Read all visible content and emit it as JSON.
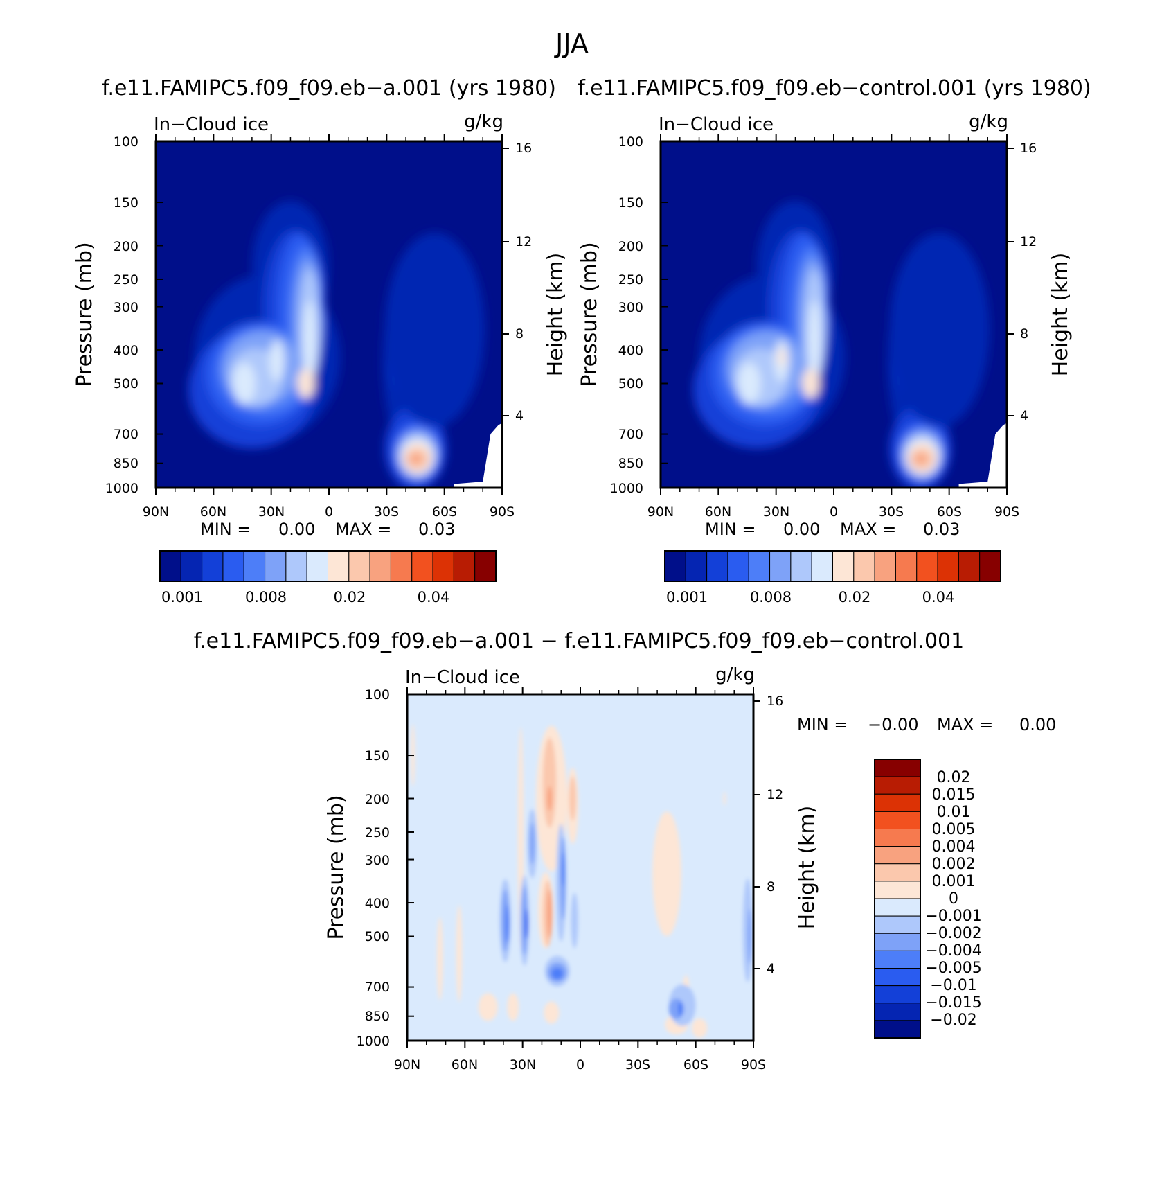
{
  "figure": {
    "title": "JJA",
    "unit_label": "g/kg"
  },
  "colors": {
    "abs_palette": [
      "#000f8a",
      "#0525b2",
      "#1340d8",
      "#2a5cf0",
      "#4d7ef8",
      "#7ea2f8",
      "#aec8fb",
      "#daeafd",
      "#fde6d6",
      "#fbc8ad",
      "#f8a27f",
      "#f67a4f",
      "#f2511f",
      "#dc3205",
      "#b81c03",
      "#870000"
    ],
    "diff_palette": [
      "#000f8a",
      "#0525b2",
      "#1340d8",
      "#2a5cf0",
      "#4d7ef8",
      "#7ea2f8",
      "#aec8fb",
      "#daeafd",
      "#fde6d6",
      "#fbc8ad",
      "#f8a27f",
      "#f67a4f",
      "#f2511f",
      "#dc3205",
      "#b81c03",
      "#870000"
    ]
  },
  "chart_data": [
    {
      "type": "heatmap",
      "id": "panel-a",
      "title": "f.e11.FAMIPC5.f09_f09.eb−a.001 (yrs 1980)",
      "variable_label": "In−Cloud ice",
      "unit_label": "g/kg",
      "xlabel": "",
      "ylabel": "Pressure (mb)",
      "ylabel_right": "Height (km)",
      "x_ticks": [
        "90N",
        "60N",
        "30N",
        "0",
        "30S",
        "60S",
        "90S"
      ],
      "y_ticks": [
        "100",
        "150",
        "200",
        "250",
        "300",
        "400",
        "500",
        "700",
        "850",
        "1000"
      ],
      "y_right_ticks": [
        "16",
        "12",
        "8",
        "4"
      ],
      "stats": {
        "min_label": "MIN =",
        "min_value": "0.00",
        "max_label": "MAX =",
        "max_value": "0.03"
      },
      "colorbar_labels": [
        "0.001",
        "0.008",
        "0.02",
        "0.04"
      ],
      "features": [
        {
          "lat": -47,
          "p": 830,
          "value": 0.028
        },
        {
          "lat": 12,
          "p": 500,
          "value": 0.022
        },
        {
          "lat": 48,
          "p": 520,
          "value": 0.014
        },
        {
          "lat": 32,
          "p": 450,
          "value": 0.012
        },
        {
          "lat": 8,
          "p": 190,
          "value": 0.012
        },
        {
          "lat": -42,
          "p": 380,
          "value": 0.006
        }
      ]
    },
    {
      "type": "heatmap",
      "id": "panel-b",
      "title": "f.e11.FAMIPC5.f09_f09.eb−control.001 (yrs 1980)",
      "variable_label": "In−Cloud ice",
      "unit_label": "g/kg",
      "xlabel": "",
      "ylabel": "Pressure (mb)",
      "ylabel_right": "Height (km)",
      "x_ticks": [
        "90N",
        "60N",
        "30N",
        "0",
        "30S",
        "60S",
        "90S"
      ],
      "y_ticks": [
        "100",
        "150",
        "200",
        "250",
        "300",
        "400",
        "500",
        "700",
        "850",
        "1000"
      ],
      "y_right_ticks": [
        "16",
        "12",
        "8",
        "4"
      ],
      "stats": {
        "min_label": "MIN =",
        "min_value": "0.00",
        "max_label": "MAX =",
        "max_value": "0.03"
      },
      "colorbar_labels": [
        "0.001",
        "0.008",
        "0.02",
        "0.04"
      ],
      "features": [
        {
          "lat": -46,
          "p": 820,
          "value": 0.028
        },
        {
          "lat": 10,
          "p": 500,
          "value": 0.02
        },
        {
          "lat": 30,
          "p": 420,
          "value": 0.016
        },
        {
          "lat": 48,
          "p": 520,
          "value": 0.013
        },
        {
          "lat": 8,
          "p": 230,
          "value": 0.013
        },
        {
          "lat": -42,
          "p": 380,
          "value": 0.006
        }
      ]
    },
    {
      "type": "heatmap",
      "id": "panel-diff",
      "title": "f.e11.FAMIPC5.f09_f09.eb−a.001 − f.e11.FAMIPC5.f09_f09.eb−control.001",
      "variable_label": "In−Cloud ice",
      "unit_label": "g/kg",
      "xlabel": "",
      "ylabel": "Pressure (mb)",
      "ylabel_right": "Height (km)",
      "x_ticks": [
        "90N",
        "60N",
        "30N",
        "0",
        "30S",
        "60S",
        "90S"
      ],
      "y_ticks": [
        "100",
        "150",
        "200",
        "250",
        "300",
        "400",
        "500",
        "700",
        "850",
        "1000"
      ],
      "y_right_ticks": [
        "16",
        "12",
        "8",
        "4"
      ],
      "stats": {
        "min_label": "MIN =",
        "min_value": "−0.00",
        "max_label": "MAX =",
        "max_value": "0.00"
      },
      "colorbar_labels": [
        "0.02",
        "0.015",
        "0.01",
        "0.005",
        "0.004",
        "0.002",
        "0.001",
        "0",
        "−0.001",
        "−0.002",
        "−0.004",
        "−0.005",
        "−0.01",
        "−0.015",
        "−0.02"
      ]
    }
  ]
}
